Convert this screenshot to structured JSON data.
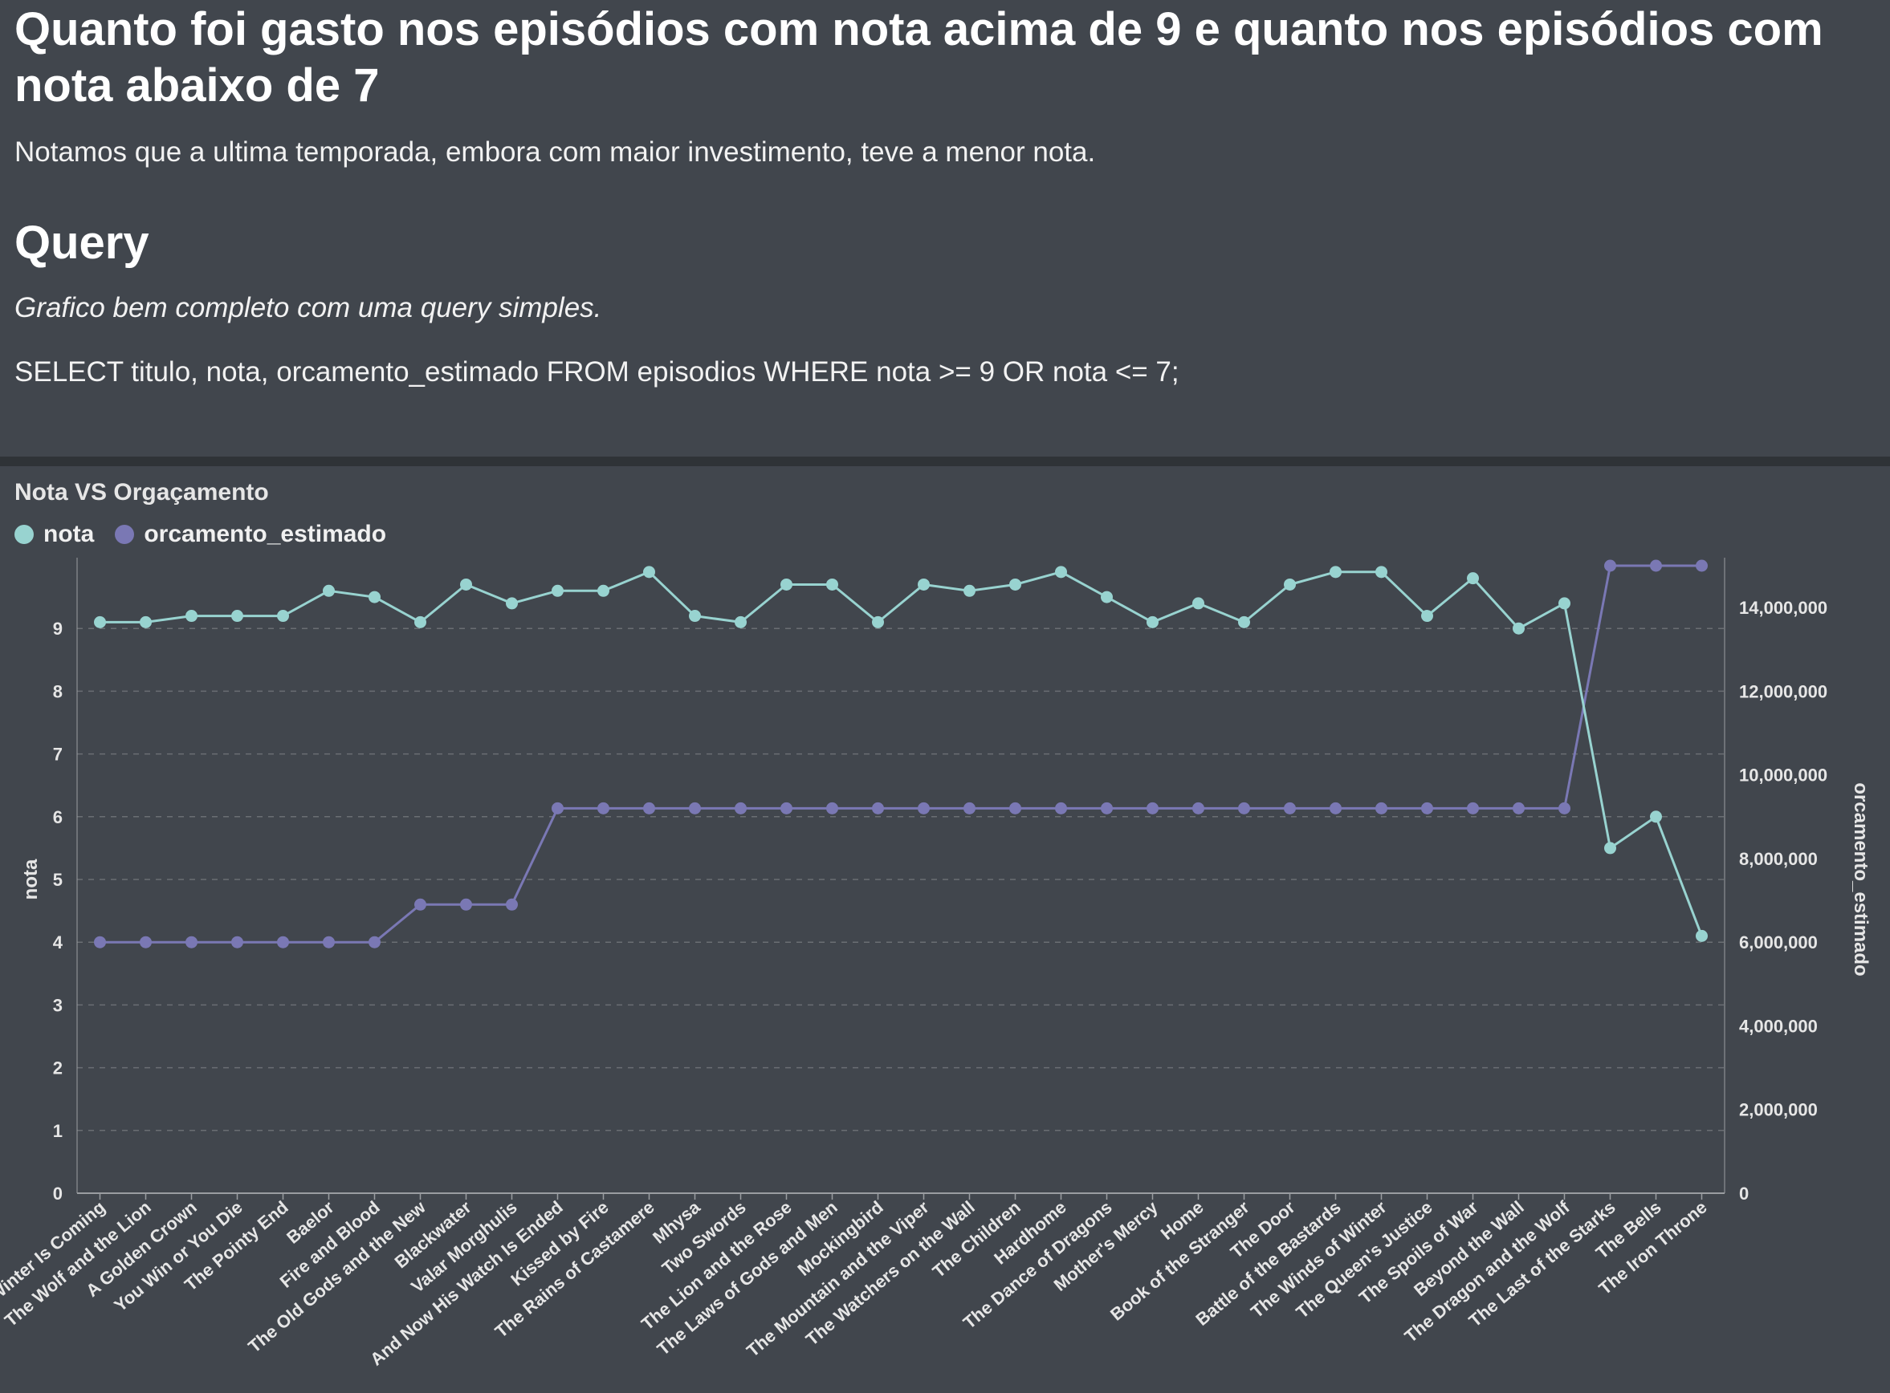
{
  "header": {
    "title": "Quanto foi gasto nos episódios com nota acima de 9 e quanto nos episódios com nota abaixo de 7",
    "subtitle": "Notamos que a ultima temporada, embora com maior investimento, teve a menor nota.",
    "query_heading": "Query",
    "query_note": "Grafico bem completo com uma query simples.",
    "query_sql": "SELECT titulo, nota, orcamento_estimado FROM episodios WHERE nota >= 9 OR nota <= 7;"
  },
  "colors": {
    "background": "#41464d",
    "divider": "#2f3337",
    "nota": "#98d3d0",
    "orcamento": "#7a78b4",
    "grid": "#6a6e73",
    "axis": "#9a9da1"
  },
  "chart_data": {
    "type": "line",
    "title": "Nota VS Orgaçamento",
    "legend_position": "top-left",
    "grid": true,
    "categories": [
      "Winter Is Coming",
      "The Wolf and the Lion",
      "A Golden Crown",
      "You Win or You Die",
      "The Pointy End",
      "Baelor",
      "Fire and Blood",
      "The Old Gods and the New",
      "Blackwater",
      "Valar Morghulis",
      "And Now His Watch Is Ended",
      "Kissed by Fire",
      "The Rains of Castamere",
      "Mhysa",
      "Two Swords",
      "The Lion and the Rose",
      "The Laws of Gods and Men",
      "Mockingbird",
      "The Mountain and the Viper",
      "The Watchers on the Wall",
      "The Children",
      "Hardhome",
      "The Dance of Dragons",
      "Mother's Mercy",
      "Home",
      "Book of the Stranger",
      "The Door",
      "Battle of the Bastards",
      "The Winds of Winter",
      "The Queen's Justice",
      "The Spoils of War",
      "Beyond the Wall",
      "The Dragon and the Wolf",
      "The Last of the Starks",
      "The Bells",
      "The Iron Throne"
    ],
    "series": [
      {
        "name": "nota",
        "axis": "left",
        "values": [
          9.1,
          9.1,
          9.2,
          9.2,
          9.2,
          9.6,
          9.5,
          9.1,
          9.7,
          9.4,
          9.6,
          9.6,
          9.9,
          9.2,
          9.1,
          9.7,
          9.7,
          9.1,
          9.7,
          9.6,
          9.7,
          9.9,
          9.5,
          9.1,
          9.4,
          9.1,
          9.7,
          9.9,
          9.9,
          9.2,
          9.8,
          9.0,
          9.4,
          5.5,
          6.0,
          4.1
        ]
      },
      {
        "name": "orcamento_estimado",
        "axis": "right",
        "values": [
          6000000,
          6000000,
          6000000,
          6000000,
          6000000,
          6000000,
          6000000,
          6900000,
          6900000,
          6900000,
          9200000,
          9200000,
          9200000,
          9200000,
          9200000,
          9200000,
          9200000,
          9200000,
          9200000,
          9200000,
          9200000,
          9200000,
          9200000,
          9200000,
          9200000,
          9200000,
          9200000,
          9200000,
          9200000,
          9200000,
          9200000,
          9200000,
          9200000,
          15000000,
          15000000,
          15000000
        ]
      }
    ],
    "y_left": {
      "label": "nota",
      "ylim": [
        0,
        10
      ],
      "ticks": [
        "0",
        "1",
        "2",
        "3",
        "4",
        "5",
        "6",
        "7",
        "8",
        "9"
      ],
      "tick_values": [
        0,
        1,
        2,
        3,
        4,
        5,
        6,
        7,
        8,
        9
      ]
    },
    "y_right": {
      "label": "orcamento_estimado",
      "ylim": [
        0,
        15000000
      ],
      "ticks": [
        "0",
        "2,000,000",
        "4,000,000",
        "6,000,000",
        "8,000,000",
        "10,000,000",
        "12,000,000",
        "14,000,000"
      ],
      "tick_values": [
        0,
        2000000,
        4000000,
        6000000,
        8000000,
        10000000,
        12000000,
        14000000
      ]
    }
  }
}
